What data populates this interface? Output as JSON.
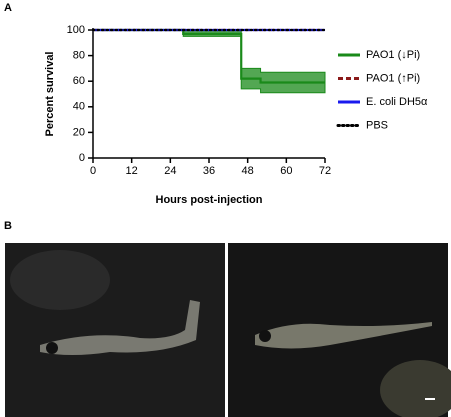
{
  "chart_data": {
    "type": "line",
    "panel_label": "A",
    "ylabel": "Percent survival",
    "xlabel": "Hours post-injection",
    "xlim": [
      0,
      72
    ],
    "xticks": [
      0,
      12,
      24,
      36,
      48,
      60,
      72
    ],
    "ylim": [
      0,
      100
    ],
    "yticks": [
      0,
      20,
      40,
      60,
      80,
      100
    ],
    "series": [
      {
        "name": "PAO1 (↓Pi)",
        "color": "#1a8a1a",
        "style": "solid",
        "x": [
          0,
          28,
          28,
          46,
          46,
          52,
          52,
          72
        ],
        "values": [
          100,
          100,
          97,
          97,
          62,
          62,
          59,
          59
        ],
        "band_upper": [
          100,
          100,
          100,
          100,
          70,
          70,
          67,
          67
        ],
        "band_lower": [
          100,
          100,
          95,
          95,
          54,
          54,
          51,
          51
        ]
      },
      {
        "name": "PAO1 (↑Pi)",
        "color": "#8b1a1a",
        "style": "dashed",
        "x": [
          0,
          72
        ],
        "values": [
          100,
          100
        ]
      },
      {
        "name": "E. coli DH5α",
        "color": "#1a1aee",
        "style": "solid",
        "x": [
          0,
          72
        ],
        "values": [
          100,
          100
        ]
      },
      {
        "name": "PBS",
        "color": "#000000",
        "style": "dotted",
        "x": [
          0,
          72
        ],
        "values": [
          100,
          100
        ]
      }
    ]
  },
  "panel_b": {
    "panel_label": "B"
  }
}
